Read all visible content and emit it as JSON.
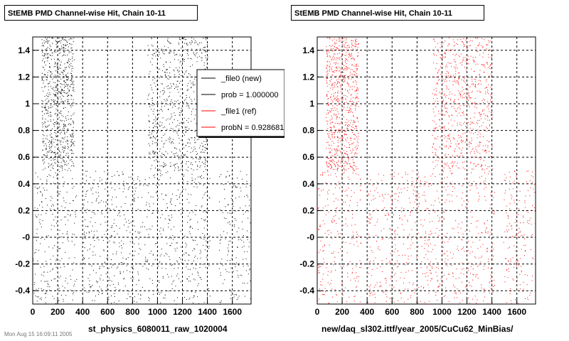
{
  "footer_note": "Mon Aug 15 16:09:11 2005",
  "chart_data": [
    {
      "type": "scatter",
      "title": "StEMB PMD Channel-wise Hit, Chain 10-11",
      "xlabel": "st_physics_6080011_raw_1020004",
      "ylabel": "",
      "xlim": [
        0,
        1750
      ],
      "ylim": [
        -0.5,
        1.5
      ],
      "x_ticks": [
        0,
        200,
        400,
        600,
        800,
        1000,
        1200,
        1400,
        1600
      ],
      "y_ticks": [
        -0.4,
        -0.2,
        -0.0,
        0.2,
        0.4,
        0.6,
        0.8,
        1.0,
        1.2,
        1.4
      ],
      "y_tick_labels": [
        "-0.4",
        "-0.2",
        "-0",
        "0.2",
        "0.4",
        "0.6",
        "0.8",
        "1",
        "1.2",
        "1.4"
      ],
      "grid": true,
      "marker_color": "#000000",
      "legend": {
        "placement": "top-right",
        "entries": [
          {
            "label": "_file0 (new)",
            "color": "#000000"
          },
          {
            "label": "prob = 1.000000",
            "color": "#000000"
          },
          {
            "label": "_file1 (ref)",
            "color": "#ff0000"
          },
          {
            "label": "probN = 0.928681",
            "color": "#ff0000"
          }
        ]
      },
      "regions": [
        {
          "x": [
            70,
            330
          ],
          "y": [
            0.5,
            1.5
          ],
          "density": "high"
        },
        {
          "x": [
            920,
            1400
          ],
          "y": [
            0.5,
            1.5
          ],
          "density": "medium"
        },
        {
          "x": [
            0,
            350
          ],
          "y": [
            -0.5,
            0.5
          ],
          "density": "low"
        },
        {
          "x": [
            400,
            1420
          ],
          "y": [
            -0.5,
            0.5
          ],
          "density": "low"
        },
        {
          "x": [
            1490,
            1750
          ],
          "y": [
            -0.5,
            0.5
          ],
          "density": "low"
        }
      ]
    },
    {
      "type": "scatter",
      "title": "StEMB PMD Channel-wise Hit, Chain 10-11",
      "xlabel": "new/daq_sl302.ittf/year_2005/CuCu62_MinBias/",
      "ylabel": "",
      "xlim": [
        0,
        1750
      ],
      "ylim": [
        -0.5,
        1.5
      ],
      "x_ticks": [
        0,
        200,
        400,
        600,
        800,
        1000,
        1200,
        1400,
        1600
      ],
      "y_ticks": [
        -0.4,
        -0.2,
        -0.0,
        0.2,
        0.4,
        0.6,
        0.8,
        1.0,
        1.2,
        1.4
      ],
      "y_tick_labels": [
        "-0.4",
        "-0.2",
        "-0",
        "0.2",
        "0.4",
        "0.6",
        "0.8",
        "1",
        "1.2",
        "1.4"
      ],
      "grid": true,
      "marker_color": "#ff0000",
      "regions": [
        {
          "x": [
            70,
            330
          ],
          "y": [
            0.5,
            1.5
          ],
          "density": "high"
        },
        {
          "x": [
            920,
            1400
          ],
          "y": [
            0.5,
            1.5
          ],
          "density": "medium"
        },
        {
          "x": [
            0,
            350
          ],
          "y": [
            -0.5,
            0.5
          ],
          "density": "low"
        },
        {
          "x": [
            400,
            1420
          ],
          "y": [
            -0.5,
            0.5
          ],
          "density": "low"
        },
        {
          "x": [
            1490,
            1750
          ],
          "y": [
            -0.5,
            0.5
          ],
          "density": "low"
        }
      ]
    }
  ]
}
